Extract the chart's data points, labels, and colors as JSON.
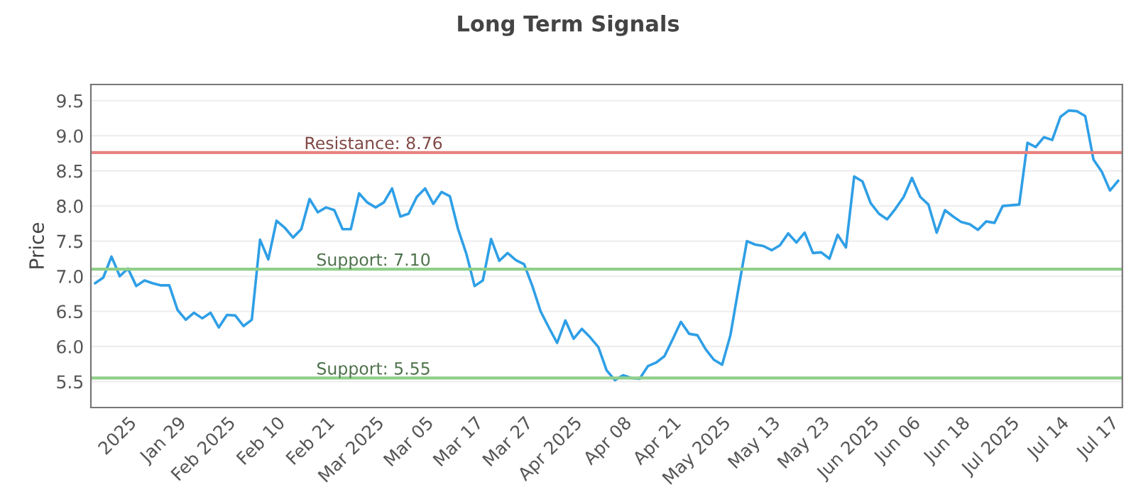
{
  "chart_data": {
    "type": "line",
    "title": "Long Term Signals",
    "ylabel": "Price",
    "categories": [
      null,
      null,
      null,
      null,
      "2025",
      null,
      null,
      null,
      null,
      null,
      "Jan 29",
      null,
      null,
      null,
      null,
      null,
      "Feb 2025",
      null,
      null,
      null,
      null,
      null,
      "Feb 10",
      null,
      null,
      null,
      null,
      null,
      "Feb 21",
      null,
      null,
      null,
      null,
      null,
      "Mar 2025",
      null,
      null,
      null,
      null,
      null,
      "Mar 05",
      null,
      null,
      null,
      null,
      null,
      "Mar 17",
      null,
      null,
      null,
      null,
      null,
      "Mar 27",
      null,
      null,
      null,
      null,
      null,
      "Apr 2025",
      null,
      null,
      null,
      null,
      null,
      "Apr 08",
      null,
      null,
      null,
      null,
      null,
      "Apr 21",
      null,
      null,
      null,
      null,
      null,
      "May 2025",
      null,
      null,
      null,
      null,
      null,
      "May 13",
      null,
      null,
      null,
      null,
      null,
      "May 23",
      null,
      null,
      null,
      null,
      null,
      "Jun 2025",
      null,
      null,
      null,
      null,
      "Jun 06",
      null,
      null,
      null,
      null,
      null,
      "Jun 18",
      null,
      null,
      null,
      null,
      null,
      "Jul 2025",
      null,
      null,
      null,
      null,
      null,
      "Jul 14",
      null,
      null,
      null,
      null,
      null,
      "Jul 17",
      null
    ],
    "series": [
      {
        "color": "#2f9fe6",
        "values": [
          6.9,
          6.98,
          7.28,
          7.0,
          7.11,
          6.86,
          6.94,
          6.9,
          6.87,
          6.87,
          6.52,
          6.38,
          6.48,
          6.4,
          6.48,
          6.27,
          6.45,
          6.44,
          6.29,
          6.38,
          7.52,
          7.24,
          7.79,
          7.69,
          7.55,
          7.67,
          8.1,
          7.91,
          7.98,
          7.94,
          7.67,
          7.67,
          8.18,
          8.05,
          7.98,
          8.05,
          8.25,
          7.85,
          7.89,
          8.13,
          8.25,
          8.03,
          8.2,
          8.14,
          7.67,
          7.32,
          6.86,
          6.94,
          7.53,
          7.22,
          7.33,
          7.23,
          7.17,
          6.86,
          6.5,
          6.27,
          6.05,
          6.37,
          6.11,
          6.25,
          6.13,
          5.99,
          5.66,
          5.52,
          5.59,
          5.55,
          5.54,
          5.72,
          5.77,
          5.86,
          6.1,
          6.35,
          6.18,
          6.16,
          5.96,
          5.81,
          5.74,
          6.16,
          6.84,
          7.5,
          7.45,
          7.43,
          7.37,
          7.44,
          7.61,
          7.48,
          7.62,
          7.33,
          7.34,
          7.25,
          7.59,
          7.41,
          8.42,
          8.35,
          8.04,
          7.89,
          7.81,
          7.96,
          8.13,
          8.4,
          8.13,
          8.02,
          7.62,
          7.94,
          7.85,
          7.77,
          7.74,
          7.66,
          7.78,
          7.76,
          8.0,
          8.01,
          8.02,
          8.9,
          8.84,
          8.98,
          8.94,
          9.27,
          9.36,
          9.35,
          9.28,
          8.66,
          8.49,
          8.22,
          8.36
        ]
      }
    ],
    "ylim": [
      5.13,
      9.73
    ],
    "yticks": [
      {
        "value": 5.5,
        "label": "5.5"
      },
      {
        "value": 6,
        "label": "6.0"
      },
      {
        "value": 6.5,
        "label": "6.5"
      },
      {
        "value": 7,
        "label": "7.0"
      },
      {
        "value": 7.5,
        "label": "7.5"
      },
      {
        "value": 8,
        "label": "8.0"
      },
      {
        "value": 8.5,
        "label": "8.5"
      },
      {
        "value": 9,
        "label": "9.0"
      },
      {
        "value": 9.5,
        "label": "9.5"
      }
    ],
    "grid": "y",
    "marker": "none",
    "line_style": "solid",
    "ref_lines": [
      {
        "axis": "y",
        "value": 8.76,
        "label": "Resistance: 8.76",
        "color": "#e8827f"
      },
      {
        "axis": "y",
        "value": 7.1,
        "label": "Support: 7.10",
        "color": "#8fcf8a"
      },
      {
        "axis": "y",
        "value": 5.55,
        "label": "Support: 5.55",
        "color": "#8fcf8a"
      }
    ]
  }
}
